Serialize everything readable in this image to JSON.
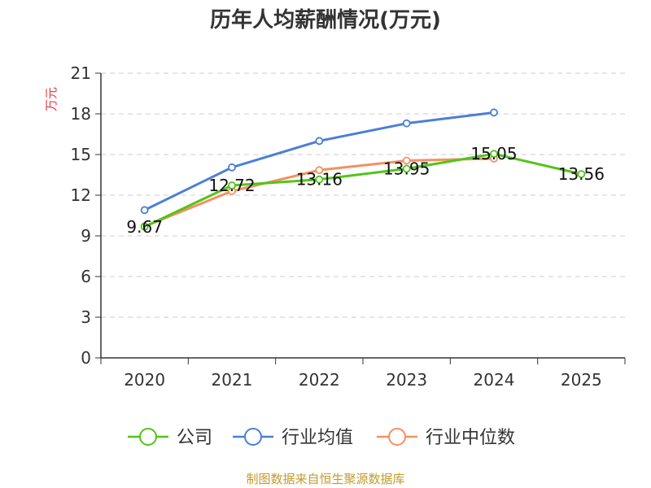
{
  "chart_data": {
    "type": "line",
    "title": "历年人均薪酬情况(万元)",
    "ylabel": "万元",
    "xlabel": "",
    "categories": [
      "2020",
      "2021",
      "2022",
      "2023",
      "2024",
      "2025"
    ],
    "ylim": [
      0,
      21
    ],
    "yticks": [
      0,
      3,
      6,
      9,
      12,
      15,
      18,
      21
    ],
    "series": [
      {
        "name": "公司",
        "color": "#52c41a",
        "values": [
          9.67,
          12.72,
          13.16,
          13.95,
          15.05,
          13.56
        ],
        "labels": [
          "9.67",
          "12.72",
          "13.16",
          "13.95",
          "15.05",
          "13.56"
        ]
      },
      {
        "name": "行业均值",
        "color": "#4a7fd6",
        "values": [
          10.9,
          14.05,
          16.0,
          17.3,
          18.1,
          null
        ]
      },
      {
        "name": "行业中位数",
        "color": "#f39160",
        "values": [
          9.7,
          12.3,
          13.85,
          14.55,
          14.7,
          null
        ]
      }
    ],
    "grid": true,
    "legend_position": "bottom"
  },
  "source": "制图数据来自恒生聚源数据库"
}
